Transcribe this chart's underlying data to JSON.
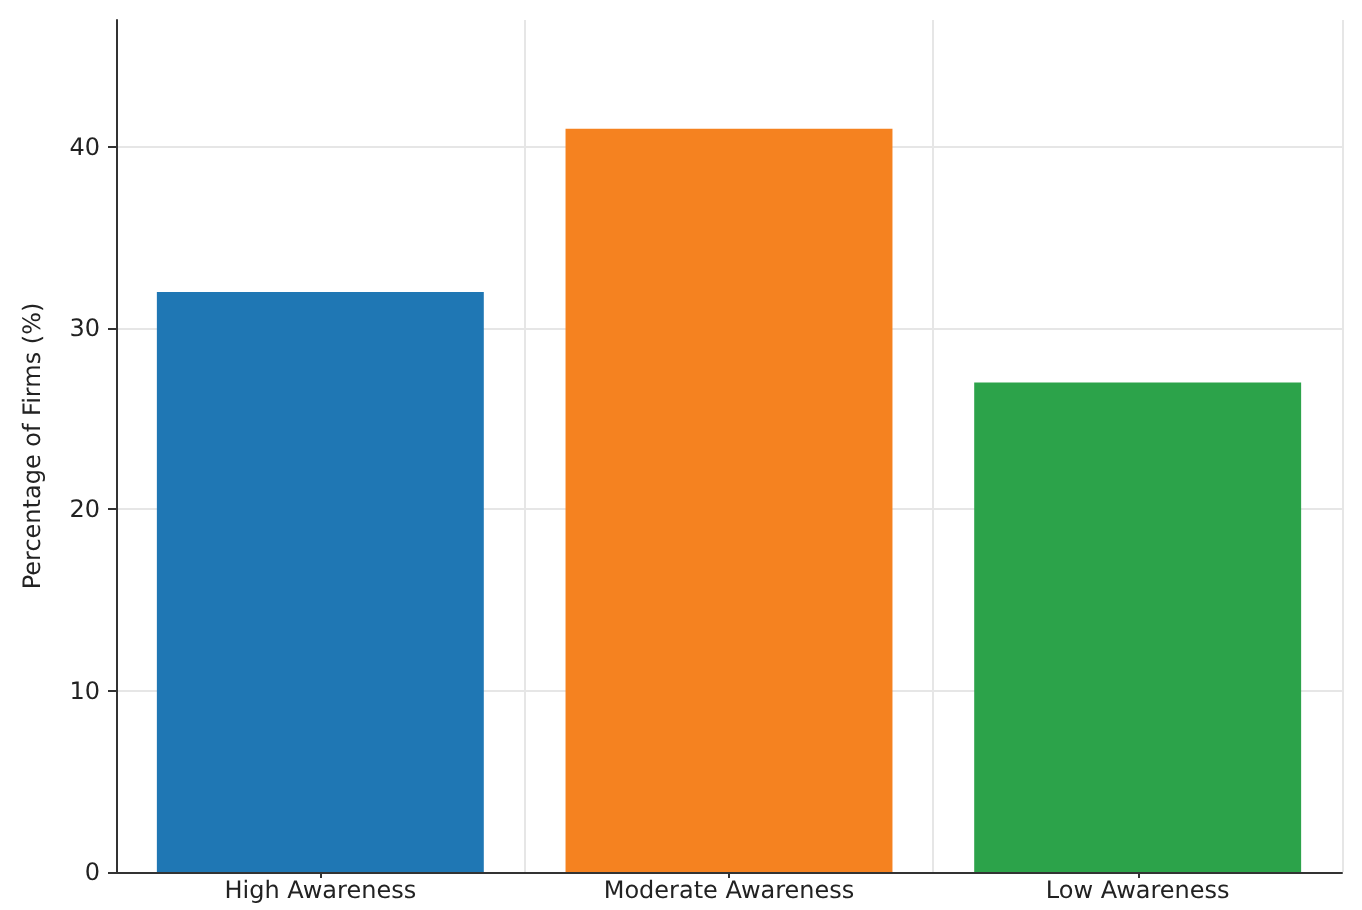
{
  "chart_data": {
    "type": "bar",
    "ylabel": "Percentage of Firms (%)",
    "categories": [
      "High Awareness",
      "Moderate Awareness",
      "Low Awareness"
    ],
    "values": [
      32,
      41,
      27
    ],
    "colors": [
      "#1f77b4",
      "#f58220",
      "#2ca34a"
    ],
    "ylim": [
      0,
      47
    ],
    "yticks": [
      0,
      10,
      20,
      30,
      40
    ],
    "grid": true
  }
}
